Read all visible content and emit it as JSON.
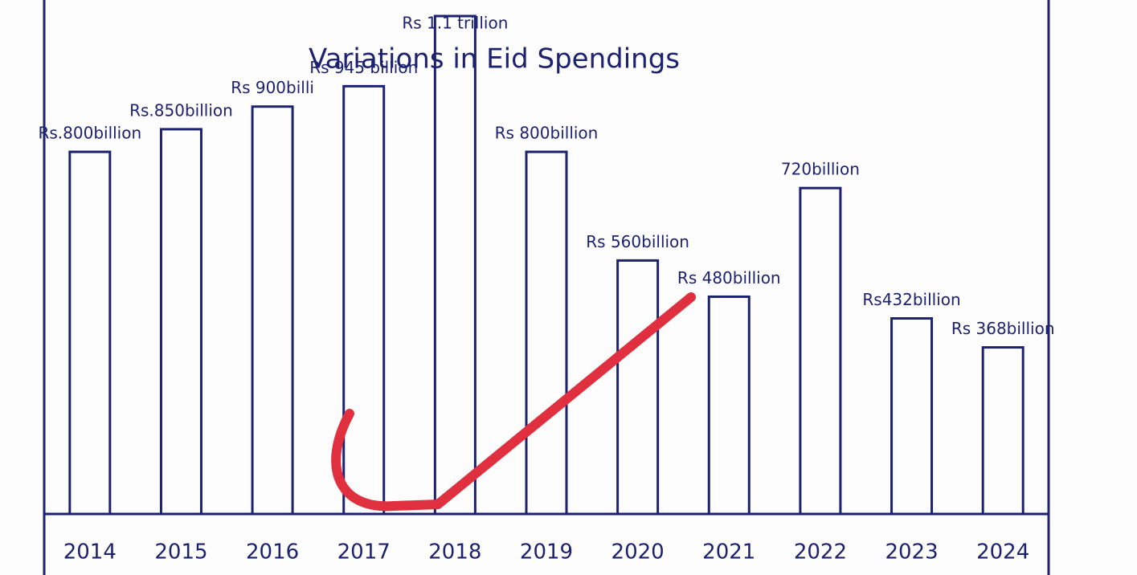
{
  "chart_data": {
    "type": "bar",
    "title": "Variations in Eid Spendings",
    "categories": [
      "2014",
      "2015",
      "2016",
      "2017",
      "2018",
      "2019",
      "2020",
      "2021",
      "2022",
      "2023",
      "2024"
    ],
    "values": [
      800,
      850,
      900,
      945,
      1100,
      800,
      560,
      480,
      720,
      432,
      368
    ],
    "value_labels": [
      "Rs.800billion",
      "Rs.850billion",
      "Rs 900billi",
      "Rs 945 billion",
      "Rs 1.1 trillion",
      "Rs 800billion",
      "Rs 560billion",
      "Rs 480billion",
      "720billion",
      "Rs432billion",
      "Rs 368billion"
    ],
    "color": "#1d2270"
  }
}
